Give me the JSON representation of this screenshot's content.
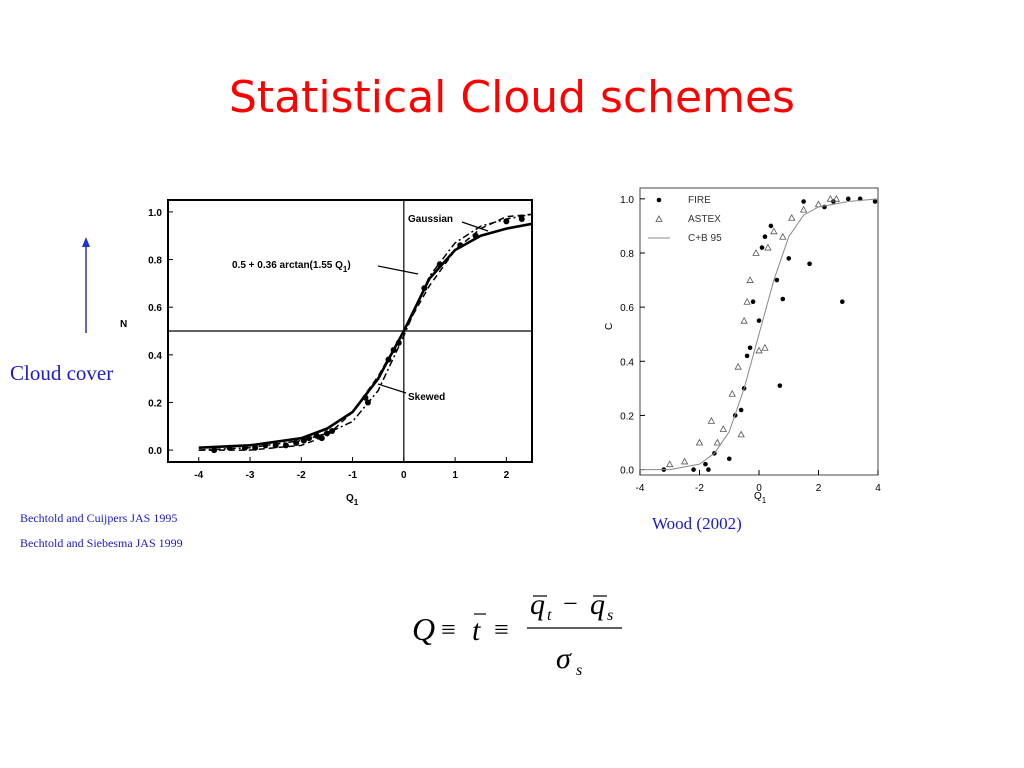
{
  "title": "Statistical Cloud schemes",
  "cloud_cover": "Cloud cover",
  "references": [
    "Bechtold and Cuijpers JAS 1995",
    "Bechtold and Siebesma JAS 1999"
  ],
  "credit": "Wood (2002)",
  "formula": {
    "lhs": "Q",
    "equiv": "≡",
    "t": "t",
    "num_a": "q",
    "num_a_sub": "t",
    "minus": "−",
    "num_b": "q",
    "num_b_sub": "s",
    "den": "σ",
    "den_sub": "s"
  },
  "chart_data": [
    {
      "type": "scatter",
      "x_label": {
        "text": "Q",
        "subscript": "1"
      },
      "y_label": "N",
      "xlim": [
        -4.6,
        2.5
      ],
      "ylim": [
        -0.05,
        1.05
      ],
      "xticks": [
        -4,
        -3,
        -2,
        -1,
        0,
        1,
        2
      ],
      "yticks": [
        {
          "value": 0,
          "label": "0.0"
        },
        0.2,
        0.4,
        0.6,
        0.8,
        {
          "value": 1,
          "label": "1.0"
        }
      ],
      "reference_lines": {
        "x": 0,
        "y": 0.5
      },
      "annotations": [
        {
          "text": "Gaussian"
        },
        {
          "text": "0.5 + 0.36 arctan(1.55 Q",
          "subscript": "1",
          "suffix": ")"
        },
        {
          "text": "Skewed"
        }
      ],
      "series": [
        {
          "mode": "line",
          "dash": "solid",
          "color": "#000000",
          "x": [
            -4,
            -3,
            -2,
            -1.5,
            -1,
            -0.5,
            0,
            0.5,
            1,
            1.5,
            2,
            2.5
          ],
          "values": [
            0.01,
            0.02,
            0.05,
            0.09,
            0.16,
            0.3,
            0.5,
            0.72,
            0.84,
            0.9,
            0.93,
            0.95
          ]
        },
        {
          "mode": "line",
          "dash": "dashed",
          "color": "#000000",
          "x": [
            -4,
            -3,
            -2,
            -1.5,
            -1,
            -0.5,
            0,
            0.5,
            1,
            1.5,
            2,
            2.5
          ],
          "values": [
            0,
            0,
            0.02,
            0.06,
            0.16,
            0.31,
            0.5,
            0.69,
            0.84,
            0.93,
            0.98,
            0.99
          ]
        },
        {
          "mode": "line",
          "dash": "dashdot",
          "color": "#000000",
          "x": [
            -4,
            -3,
            -2,
            -1.5,
            -1,
            -0.5,
            0,
            0.5,
            1,
            1.5,
            2,
            2.5
          ],
          "values": [
            0,
            0.01,
            0.04,
            0.07,
            0.12,
            0.25,
            0.48,
            0.73,
            0.87,
            0.94,
            0.97,
            0.99
          ]
        },
        {
          "mode": "markers",
          "marker": "dot",
          "color": "#000000",
          "x": [
            -3.7,
            -3.4,
            -3.1,
            -2.9,
            -2.7,
            -2.5,
            -2.3,
            -2.1,
            -1.95,
            -1.85,
            -1.7,
            -1.6,
            -1.5,
            -1.4,
            -0.7,
            -0.75,
            -0.3,
            -0.2,
            -0.1,
            0.4,
            0.7,
            1.1,
            1.4,
            2.0,
            2.3
          ],
          "values": [
            0,
            0.01,
            0.01,
            0.01,
            0.02,
            0.02,
            0.02,
            0.03,
            0.04,
            0.05,
            0.06,
            0.05,
            0.07,
            0.08,
            0.2,
            0.22,
            0.38,
            0.42,
            0.45,
            0.68,
            0.78,
            0.86,
            0.9,
            0.96,
            0.97
          ]
        }
      ]
    },
    {
      "type": "scatter",
      "x_label": {
        "text": "Q",
        "subscript": "1"
      },
      "y_label": "C",
      "xlim": [
        -4,
        4
      ],
      "ylim": [
        -0.02,
        1.04
      ],
      "xticks": [
        -4,
        -2,
        0,
        2,
        4
      ],
      "yticks": [
        {
          "value": 0,
          "label": "0.0"
        },
        0.2,
        0.4,
        0.6,
        0.8,
        {
          "value": 1,
          "label": "1.0"
        }
      ],
      "legend": "upper left",
      "series": [
        {
          "name": "FIRE",
          "mode": "markers",
          "marker": "dot",
          "color": "#000000",
          "x": [
            -3.2,
            -2.2,
            -1.8,
            -1.7,
            -1.5,
            -1.0,
            -0.8,
            -0.6,
            -0.5,
            -0.4,
            -0.3,
            -0.2,
            0.0,
            0.1,
            0.2,
            0.4,
            0.6,
            0.8,
            1.0,
            0.7,
            1.7,
            2.2,
            2.5,
            2.8,
            3.0,
            3.4,
            3.9,
            1.5
          ],
          "values": [
            0,
            0,
            0.02,
            0,
            0.06,
            0.04,
            0.2,
            0.22,
            0.3,
            0.42,
            0.45,
            0.62,
            0.55,
            0.82,
            0.86,
            0.9,
            0.7,
            0.63,
            0.78,
            0.31,
            0.76,
            0.97,
            0.99,
            0.62,
            1,
            1,
            0.99,
            0.99
          ]
        },
        {
          "name": "ASTEX",
          "mode": "markers",
          "marker": "triangle",
          "color": "#555555",
          "x": [
            -3.0,
            -2.5,
            -2.0,
            -1.6,
            -1.2,
            -0.9,
            -0.7,
            -0.5,
            -0.4,
            -0.3,
            -0.1,
            0.0,
            0.2,
            0.3,
            0.5,
            0.8,
            1.1,
            1.5,
            2.0,
            2.4,
            2.6,
            -0.6,
            -1.4
          ],
          "values": [
            0.02,
            0.03,
            0.1,
            0.18,
            0.15,
            0.28,
            0.38,
            0.55,
            0.62,
            0.7,
            0.8,
            0.44,
            0.45,
            0.82,
            0.88,
            0.86,
            0.93,
            0.96,
            0.98,
            1,
            1,
            0.13,
            0.1
          ]
        },
        {
          "name": "C+B 95",
          "mode": "line",
          "dash": "solid",
          "color": "#888888",
          "x": [
            -4,
            -3,
            -2,
            -1.5,
            -1,
            -0.5,
            0,
            0.5,
            1,
            1.5,
            2,
            3,
            4
          ],
          "values": [
            0,
            0,
            0.02,
            0.06,
            0.14,
            0.3,
            0.5,
            0.7,
            0.86,
            0.94,
            0.97,
            0.99,
            1
          ]
        }
      ]
    }
  ]
}
